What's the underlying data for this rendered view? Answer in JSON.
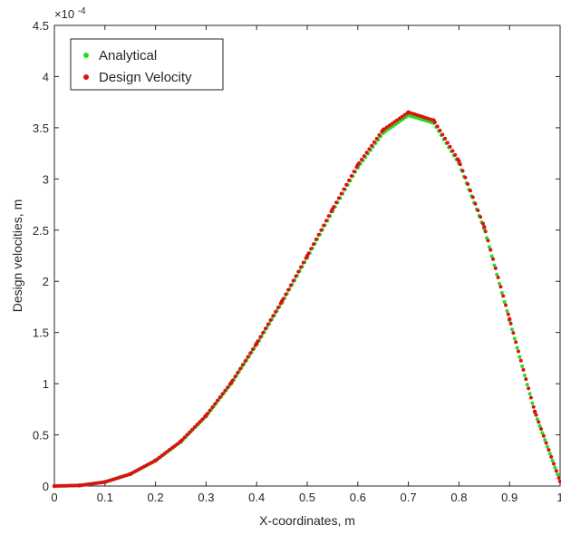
{
  "chart_data": {
    "type": "scatter",
    "title": "",
    "xlabel": "X-coordinates, m",
    "ylabel": "Design velocities, m",
    "xlim": [
      0,
      1
    ],
    "ylim": [
      0,
      0.00045
    ],
    "y_exponent_label": "×10",
    "y_exponent_power": "-4",
    "x_ticks": [
      "0",
      "0.1",
      "0.2",
      "0.3",
      "0.4",
      "0.5",
      "0.6",
      "0.7",
      "0.8",
      "0.9",
      "1"
    ],
    "y_ticks": [
      "0",
      "0.5",
      "1",
      "1.5",
      "2",
      "2.5",
      "3",
      "3.5",
      "4",
      "4.5"
    ],
    "grid": false,
    "legend_placement": "top-left",
    "colors": {
      "analytical": "#22dd22",
      "design_velocity": "#dd1111",
      "axis": "#262626",
      "background": "#ffffff"
    },
    "series": [
      {
        "name": "Analytical",
        "color": "#22dd22",
        "x": [
          0,
          0.05,
          0.1,
          0.15,
          0.2,
          0.25,
          0.3,
          0.35,
          0.4,
          0.45,
          0.5,
          0.55,
          0.6,
          0.65,
          0.7,
          0.75,
          0.8,
          0.85,
          0.9,
          0.95,
          1.0
        ],
        "y": [
          0,
          6e-07,
          3.9e-06,
          1.16e-05,
          2.47e-05,
          4.32e-05,
          6.82e-05,
          0.0001003,
          0.0001382,
          0.0001791,
          0.0002231,
          0.0002684,
          0.0003112,
          0.0003449,
          0.0003621,
          0.0003546,
          0.0003151,
          0.0002513,
          0.000162,
          7.21e-05,
          4.5e-06
        ]
      },
      {
        "name": "Design Velocity",
        "color": "#dd1111",
        "x": [
          0,
          0.05,
          0.1,
          0.15,
          0.2,
          0.25,
          0.3,
          0.35,
          0.4,
          0.45,
          0.5,
          0.55,
          0.6,
          0.65,
          0.7,
          0.75,
          0.8,
          0.85,
          0.9,
          0.95,
          1.0
        ],
        "y": [
          0,
          6e-07,
          3.9e-06,
          1.17e-05,
          2.5e-05,
          4.37e-05,
          6.89e-05,
          0.0001012,
          0.0001394,
          0.0001806,
          0.0002249,
          0.0002706,
          0.0003138,
          0.0003479,
          0.0003651,
          0.0003573,
          0.0003175,
          0.0002532,
          0.0001632,
          7.28e-05,
          4.6e-06
        ]
      }
    ]
  }
}
